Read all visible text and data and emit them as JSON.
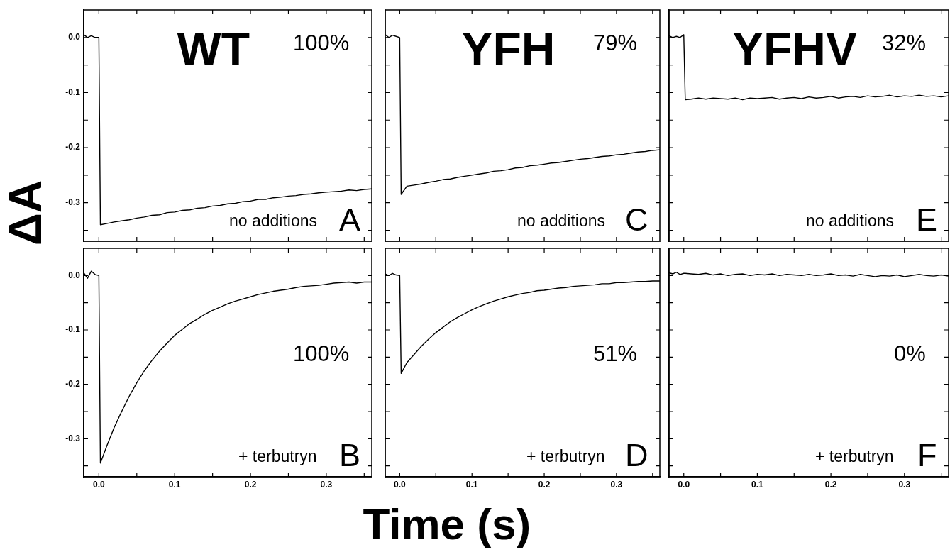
{
  "chart_data": [
    {
      "type": "line",
      "title": "WT",
      "annotations": [
        "100%",
        "no additions",
        "A"
      ],
      "ylabel": "ΔA",
      "tick_labels": "y",
      "xlim": [
        -0.02,
        0.36
      ],
      "ylim": [
        -0.37,
        0.05
      ],
      "xticks": [
        {
          "value": 0,
          "label": null
        },
        {
          "value": 0.05,
          "label": null
        },
        {
          "value": 0.1,
          "label": null
        },
        {
          "value": 0.15,
          "label": null
        },
        {
          "value": 0.2,
          "label": null
        },
        {
          "value": 0.25,
          "label": null
        },
        {
          "value": 0.3,
          "label": null
        },
        {
          "value": 0.35,
          "label": null
        }
      ],
      "yticks": [
        {
          "value": 0,
          "label": "0.0"
        },
        {
          "value": -0.05,
          "label": null
        },
        -0.1,
        {
          "value": -0.15,
          "label": null
        },
        -0.2,
        {
          "value": -0.25,
          "label": null
        },
        -0.3,
        {
          "value": -0.35,
          "label": null
        }
      ],
      "x": [
        -0.02,
        -0.015,
        -0.01,
        -0.005,
        0,
        0.002,
        0.01,
        0.02,
        0.03,
        0.04,
        0.05,
        0.06,
        0.07,
        0.08,
        0.09,
        0.1,
        0.11,
        0.12,
        0.13,
        0.14,
        0.15,
        0.16,
        0.17,
        0.18,
        0.19,
        0.2,
        0.21,
        0.22,
        0.23,
        0.24,
        0.25,
        0.26,
        0.27,
        0.28,
        0.29,
        0.3,
        0.31,
        0.32,
        0.33,
        0.34,
        0.35,
        0.36
      ],
      "series": [
        {
          "color": "#000000",
          "values": [
            0.005,
            0.0,
            0.003,
            0.0,
            0.0,
            -0.34,
            -0.338,
            -0.335,
            -0.333,
            -0.331,
            -0.328,
            -0.326,
            -0.323,
            -0.322,
            -0.318,
            -0.317,
            -0.314,
            -0.313,
            -0.31,
            -0.309,
            -0.306,
            -0.305,
            -0.302,
            -0.301,
            -0.298,
            -0.297,
            -0.294,
            -0.294,
            -0.291,
            -0.29,
            -0.288,
            -0.287,
            -0.285,
            -0.284,
            -0.282,
            -0.281,
            -0.28,
            -0.279,
            -0.277,
            -0.278,
            -0.276,
            -0.275
          ]
        }
      ]
    },
    {
      "type": "line",
      "title": "YFH",
      "annotations": [
        "79%",
        "no additions",
        "C"
      ],
      "tick_labels": false,
      "xlim": [
        -0.02,
        0.36
      ],
      "ylim": [
        -0.37,
        0.05
      ],
      "xticks": [
        {
          "value": 0,
          "label": null
        },
        {
          "value": 0.05,
          "label": null
        },
        {
          "value": 0.1,
          "label": null
        },
        {
          "value": 0.15,
          "label": null
        },
        {
          "value": 0.2,
          "label": null
        },
        {
          "value": 0.25,
          "label": null
        },
        {
          "value": 0.3,
          "label": null
        },
        {
          "value": 0.35,
          "label": null
        }
      ],
      "yticks": [
        {
          "value": 0,
          "label": null
        },
        {
          "value": -0.05,
          "label": null
        },
        {
          "value": -0.1,
          "label": null
        },
        {
          "value": -0.15,
          "label": null
        },
        {
          "value": -0.2,
          "label": null
        },
        {
          "value": -0.25,
          "label": null
        },
        {
          "value": -0.3,
          "label": null
        },
        {
          "value": -0.35,
          "label": null
        }
      ],
      "x": [
        -0.02,
        -0.015,
        -0.01,
        -0.005,
        0,
        0.002,
        0.01,
        0.02,
        0.03,
        0.04,
        0.05,
        0.06,
        0.07,
        0.08,
        0.09,
        0.1,
        0.11,
        0.12,
        0.13,
        0.14,
        0.15,
        0.16,
        0.17,
        0.18,
        0.19,
        0.2,
        0.21,
        0.22,
        0.23,
        0.24,
        0.25,
        0.26,
        0.27,
        0.28,
        0.29,
        0.3,
        0.31,
        0.32,
        0.33,
        0.34,
        0.35,
        0.36
      ],
      "series": [
        {
          "color": "#000000",
          "values": [
            0.005,
            0.0,
            0.004,
            0.002,
            0.0,
            -0.285,
            -0.27,
            -0.268,
            -0.266,
            -0.263,
            -0.261,
            -0.258,
            -0.257,
            -0.254,
            -0.252,
            -0.25,
            -0.248,
            -0.246,
            -0.243,
            -0.242,
            -0.24,
            -0.237,
            -0.236,
            -0.233,
            -0.232,
            -0.23,
            -0.228,
            -0.227,
            -0.225,
            -0.223,
            -0.221,
            -0.22,
            -0.218,
            -0.216,
            -0.215,
            -0.213,
            -0.212,
            -0.21,
            -0.208,
            -0.207,
            -0.205,
            -0.204
          ]
        }
      ]
    },
    {
      "type": "line",
      "title": "YFHV",
      "annotations": [
        "32%",
        "no additions",
        "E"
      ],
      "tick_labels": false,
      "xlim": [
        -0.02,
        0.36
      ],
      "ylim": [
        -0.37,
        0.05
      ],
      "xticks": [
        {
          "value": 0,
          "label": null
        },
        {
          "value": 0.05,
          "label": null
        },
        {
          "value": 0.1,
          "label": null
        },
        {
          "value": 0.15,
          "label": null
        },
        {
          "value": 0.2,
          "label": null
        },
        {
          "value": 0.25,
          "label": null
        },
        {
          "value": 0.3,
          "label": null
        },
        {
          "value": 0.35,
          "label": null
        }
      ],
      "yticks": [
        {
          "value": 0,
          "label": null
        },
        {
          "value": -0.05,
          "label": null
        },
        {
          "value": -0.1,
          "label": null
        },
        {
          "value": -0.15,
          "label": null
        },
        {
          "value": -0.2,
          "label": null
        },
        {
          "value": -0.25,
          "label": null
        },
        {
          "value": -0.3,
          "label": null
        },
        {
          "value": -0.35,
          "label": null
        }
      ],
      "x": [
        -0.02,
        -0.015,
        -0.01,
        -0.005,
        0,
        0.002,
        0.01,
        0.02,
        0.03,
        0.04,
        0.05,
        0.06,
        0.07,
        0.08,
        0.09,
        0.1,
        0.11,
        0.12,
        0.13,
        0.14,
        0.15,
        0.16,
        0.17,
        0.18,
        0.19,
        0.2,
        0.21,
        0.22,
        0.23,
        0.24,
        0.25,
        0.26,
        0.27,
        0.28,
        0.29,
        0.3,
        0.31,
        0.32,
        0.33,
        0.34,
        0.35,
        0.36
      ],
      "series": [
        {
          "color": "#000000",
          "values": [
            0.003,
            0.0,
            0.002,
            0.0,
            0.005,
            -0.113,
            -0.112,
            -0.11,
            -0.112,
            -0.11,
            -0.111,
            -0.112,
            -0.11,
            -0.113,
            -0.11,
            -0.111,
            -0.11,
            -0.109,
            -0.112,
            -0.11,
            -0.109,
            -0.111,
            -0.108,
            -0.11,
            -0.109,
            -0.107,
            -0.11,
            -0.108,
            -0.107,
            -0.109,
            -0.106,
            -0.108,
            -0.107,
            -0.105,
            -0.108,
            -0.106,
            -0.107,
            -0.105,
            -0.107,
            -0.106,
            -0.108,
            -0.106
          ]
        }
      ]
    },
    {
      "type": "line",
      "annotations": [
        "100%",
        "+ terbutryn",
        "B"
      ],
      "xlim": [
        -0.02,
        0.36
      ],
      "ylim": [
        -0.37,
        0.05
      ],
      "xticks": [
        {
          "value": 0,
          "label": "0.0"
        },
        {
          "value": 0.05,
          "label": null
        },
        0.1,
        {
          "value": 0.15,
          "label": null
        },
        0.2,
        {
          "value": 0.25,
          "label": null
        },
        0.3,
        {
          "value": 0.35,
          "label": null
        }
      ],
      "yticks": [
        {
          "value": 0,
          "label": "0.0"
        },
        {
          "value": -0.05,
          "label": null
        },
        -0.1,
        {
          "value": -0.15,
          "label": null
        },
        -0.2,
        {
          "value": -0.25,
          "label": null
        },
        -0.3,
        {
          "value": -0.35,
          "label": null
        }
      ],
      "x": [
        -0.02,
        -0.015,
        -0.01,
        -0.005,
        0,
        0.002,
        0.01,
        0.02,
        0.03,
        0.04,
        0.05,
        0.06,
        0.07,
        0.08,
        0.09,
        0.1,
        0.11,
        0.12,
        0.13,
        0.14,
        0.15,
        0.16,
        0.17,
        0.18,
        0.19,
        0.2,
        0.21,
        0.22,
        0.23,
        0.24,
        0.25,
        0.26,
        0.27,
        0.28,
        0.29,
        0.3,
        0.31,
        0.32,
        0.33,
        0.34,
        0.35,
        0.36
      ],
      "series": [
        {
          "color": "#000000",
          "values": [
            0.005,
            -0.005,
            0.008,
            0.002,
            0.0,
            -0.345,
            -0.315,
            -0.28,
            -0.25,
            -0.222,
            -0.197,
            -0.175,
            -0.156,
            -0.139,
            -0.124,
            -0.11,
            -0.099,
            -0.088,
            -0.08,
            -0.071,
            -0.064,
            -0.058,
            -0.052,
            -0.047,
            -0.043,
            -0.039,
            -0.035,
            -0.032,
            -0.029,
            -0.027,
            -0.025,
            -0.022,
            -0.02,
            -0.019,
            -0.018,
            -0.016,
            -0.014,
            -0.013,
            -0.012,
            -0.014,
            -0.012,
            -0.012
          ]
        }
      ]
    },
    {
      "type": "line",
      "annotations": [
        "51%",
        "+ terbutryn",
        "D"
      ],
      "xlabel": "Time (s)",
      "tick_labels": "x",
      "xlim": [
        -0.02,
        0.36
      ],
      "ylim": [
        -0.37,
        0.05
      ],
      "xticks": [
        {
          "value": 0,
          "label": "0.0"
        },
        {
          "value": 0.05,
          "label": null
        },
        0.1,
        {
          "value": 0.15,
          "label": null
        },
        0.2,
        {
          "value": 0.25,
          "label": null
        },
        0.3,
        {
          "value": 0.35,
          "label": null
        }
      ],
      "yticks": [
        {
          "value": 0,
          "label": null
        },
        {
          "value": -0.05,
          "label": null
        },
        {
          "value": -0.1,
          "label": null
        },
        {
          "value": -0.15,
          "label": null
        },
        {
          "value": -0.2,
          "label": null
        },
        {
          "value": -0.25,
          "label": null
        },
        {
          "value": -0.3,
          "label": null
        },
        {
          "value": -0.35,
          "label": null
        }
      ],
      "x": [
        -0.02,
        -0.015,
        -0.01,
        -0.005,
        0,
        0.002,
        0.01,
        0.02,
        0.03,
        0.04,
        0.05,
        0.06,
        0.07,
        0.08,
        0.09,
        0.1,
        0.11,
        0.12,
        0.13,
        0.14,
        0.15,
        0.16,
        0.17,
        0.18,
        0.19,
        0.2,
        0.21,
        0.22,
        0.23,
        0.24,
        0.25,
        0.26,
        0.27,
        0.28,
        0.29,
        0.3,
        0.31,
        0.32,
        0.33,
        0.34,
        0.35,
        0.36
      ],
      "series": [
        {
          "color": "#000000",
          "values": [
            0.003,
            0.0,
            0.004,
            0.001,
            0.0,
            -0.18,
            -0.16,
            -0.145,
            -0.13,
            -0.117,
            -0.105,
            -0.095,
            -0.085,
            -0.077,
            -0.07,
            -0.063,
            -0.057,
            -0.052,
            -0.047,
            -0.043,
            -0.039,
            -0.036,
            -0.033,
            -0.031,
            -0.028,
            -0.027,
            -0.025,
            -0.023,
            -0.022,
            -0.02,
            -0.019,
            -0.018,
            -0.017,
            -0.015,
            -0.015,
            -0.013,
            -0.013,
            -0.012,
            -0.011,
            -0.011,
            -0.01,
            -0.01
          ]
        }
      ]
    },
    {
      "type": "line",
      "annotations": [
        "0%",
        "+ terbutryn",
        "F"
      ],
      "tick_labels": "x",
      "xlim": [
        -0.02,
        0.36
      ],
      "ylim": [
        -0.37,
        0.05
      ],
      "xticks": [
        {
          "value": 0,
          "label": "0.0"
        },
        {
          "value": 0.05,
          "label": null
        },
        0.1,
        {
          "value": 0.15,
          "label": null
        },
        0.2,
        {
          "value": 0.25,
          "label": null
        },
        0.3,
        {
          "value": 0.35,
          "label": null
        }
      ],
      "yticks": [
        {
          "value": 0,
          "label": null
        },
        {
          "value": -0.05,
          "label": null
        },
        {
          "value": -0.1,
          "label": null
        },
        {
          "value": -0.15,
          "label": null
        },
        {
          "value": -0.2,
          "label": null
        },
        {
          "value": -0.25,
          "label": null
        },
        {
          "value": -0.3,
          "label": null
        },
        {
          "value": -0.35,
          "label": null
        }
      ],
      "x": [
        -0.02,
        -0.015,
        -0.01,
        -0.005,
        0,
        0.002,
        0.01,
        0.02,
        0.03,
        0.04,
        0.05,
        0.06,
        0.07,
        0.08,
        0.09,
        0.1,
        0.11,
        0.12,
        0.13,
        0.14,
        0.15,
        0.16,
        0.17,
        0.18,
        0.19,
        0.2,
        0.21,
        0.22,
        0.23,
        0.24,
        0.25,
        0.26,
        0.27,
        0.28,
        0.29,
        0.3,
        0.31,
        0.32,
        0.33,
        0.34,
        0.35,
        0.36
      ],
      "series": [
        {
          "color": "#000000",
          "values": [
            0.005,
            0.003,
            0.006,
            0.002,
            0.004,
            0.004,
            0.003,
            0.002,
            0.004,
            0.001,
            0.003,
            0.0,
            0.002,
            0.003,
            0.0,
            0.002,
            0.001,
            0.003,
            0.0,
            0.002,
            0.001,
            0.0,
            0.002,
            0.0,
            0.001,
            0.003,
            0.0,
            0.001,
            -0.001,
            0.002,
            0.0,
            -0.002,
            0.0,
            -0.001,
            0.001,
            -0.002,
            0.0,
            0.002,
            0.0,
            -0.001,
            0.001,
            -0.001
          ]
        }
      ]
    }
  ]
}
